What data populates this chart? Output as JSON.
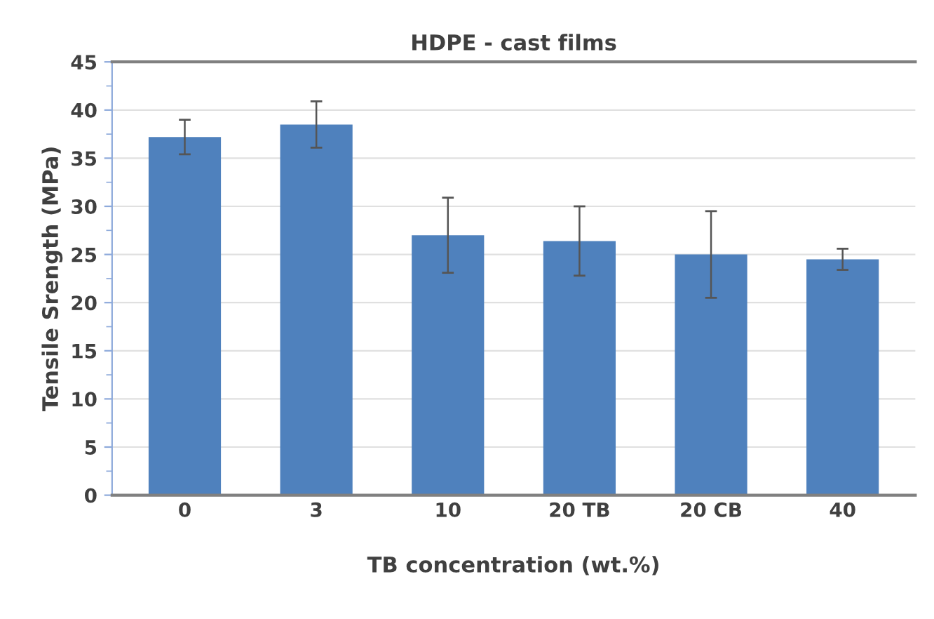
{
  "chart_data": {
    "type": "bar",
    "title": "HDPE - cast films",
    "xlabel": "TB concentration (wt.%)",
    "ylabel": "Tensile Srength (MPa)",
    "categories": [
      "0",
      "3",
      "10",
      "20 TB",
      "20 CB",
      "40"
    ],
    "values": [
      37.2,
      38.5,
      27.0,
      26.4,
      25.0,
      24.5
    ],
    "errors": [
      1.8,
      2.4,
      3.9,
      3.6,
      4.5,
      1.1
    ],
    "color": "#4f81bd",
    "ylim": [
      0,
      45
    ],
    "yticks": [
      0,
      5,
      10,
      15,
      20,
      25,
      30,
      35,
      40,
      45
    ],
    "grid": "y"
  }
}
